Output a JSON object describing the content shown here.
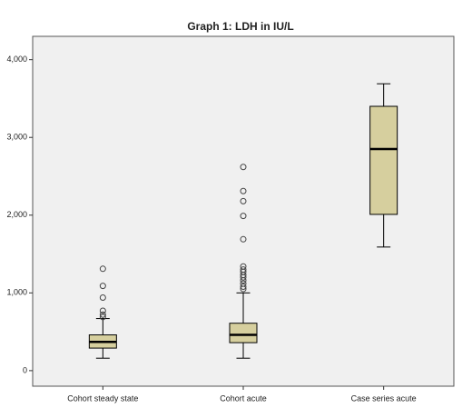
{
  "chart_data": {
    "type": "box",
    "title": "Graph 1: LDH in IU/L",
    "categories": [
      "Cohort steady state",
      "Cohort acute",
      "Case series acute"
    ],
    "color": "#d6cf9e",
    "background": "#f0f0f0",
    "boxes": [
      {
        "min": 160,
        "q1": 290,
        "median": 370,
        "q3": 460,
        "max": 670,
        "outliers": [
          690,
          720,
          770,
          940,
          1090,
          1310
        ]
      },
      {
        "min": 160,
        "q1": 360,
        "median": 460,
        "q3": 610,
        "max": 1000,
        "outliers": [
          1050,
          1080,
          1120,
          1160,
          1200,
          1230,
          1270,
          1300,
          1340,
          1690,
          1990,
          2180,
          2310,
          2620
        ]
      },
      {
        "min": 1590,
        "q1": 2010,
        "median": 2850,
        "q3": 3400,
        "max": 3690,
        "outliers": []
      }
    ],
    "ylim": [
      -200,
      4300
    ],
    "yticks": [
      0,
      {
        "value": 1000,
        "label": "1,000"
      },
      {
        "value": 2000,
        "label": "2,000"
      },
      {
        "value": 3000,
        "label": "3,000"
      },
      {
        "value": 4000,
        "label": "4,000"
      }
    ]
  }
}
